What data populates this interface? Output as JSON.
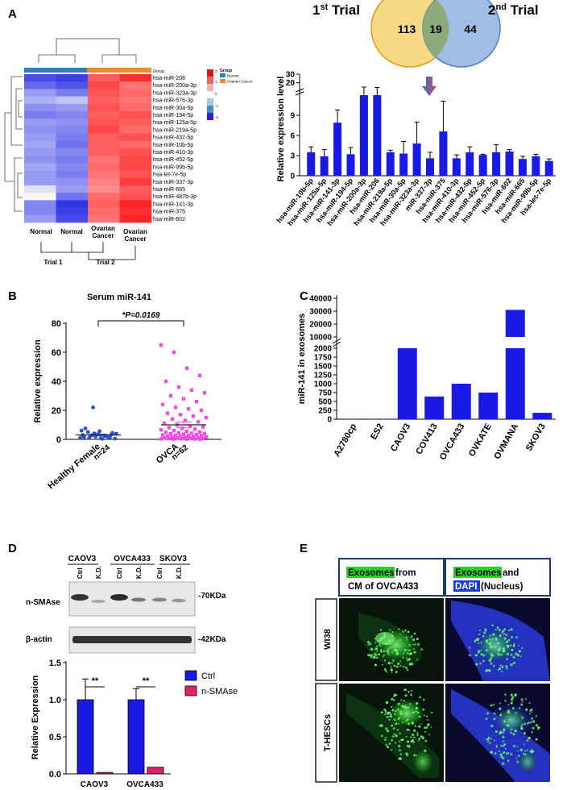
{
  "panels": {
    "A": "A",
    "B": "B",
    "C": "C",
    "D": "D",
    "E": "E"
  },
  "venn": {
    "left_label": "1st Trial",
    "right_label": "2nd Trial",
    "left_only": "113",
    "overlap": "19",
    "right_only": "44"
  },
  "heatmap": {
    "legend_title_colorbar": "Group",
    "legend_title": "Group",
    "legend_items": [
      {
        "label": "Normal",
        "color": "#2e7fc1"
      },
      {
        "label": "Ovarian Cancer",
        "color": "#f28c28"
      }
    ],
    "colorbar_ticks": [
      "2",
      "1",
      "0",
      "-1",
      "-2"
    ],
    "rows": [
      "hsa-miR-206",
      "hsa-miR-200a-3p",
      "hsa-miR-323a-3p",
      "hsa-miR-576-3p",
      "hsa-miR-30a-5p",
      "hsa-miR-194-5p",
      "hsa-miR-125a-5p",
      "hsa-miR-219a-5p",
      "hsa-miR-432-5p",
      "hsa-miR-10b-5p",
      "hsa-miR-410-3p",
      "hsa-miR-452-5p",
      "hsa-miR-99b-5p",
      "hsa-let-7e-5p",
      "hsa-miR-337-3p",
      "hsa-miR-665",
      "hsa-miR-487b-3p",
      "hsa-miR-141-3p",
      "hsa-miR-375",
      "hsa-miR-602"
    ],
    "columns": [
      "Normal",
      "Normal",
      "Ovarian Cancer",
      "Ovarian Cancer"
    ],
    "values": [
      [
        -1.8,
        -1.9,
        1.4,
        1.8
      ],
      [
        -1.5,
        -1.7,
        1.6,
        1.2
      ],
      [
        -1.0,
        -1.3,
        1.5,
        1.3
      ],
      [
        -0.8,
        -0.6,
        1.4,
        1.2
      ],
      [
        -1.1,
        -1.0,
        1.5,
        1.3
      ],
      [
        -1.3,
        -1.2,
        1.4,
        1.5
      ],
      [
        -1.0,
        -1.1,
        1.5,
        1.4
      ],
      [
        -1.1,
        -1.2,
        1.6,
        1.3
      ],
      [
        -1.0,
        -1.3,
        1.4,
        1.5
      ],
      [
        -0.9,
        -1.4,
        1.4,
        1.3
      ],
      [
        -1.0,
        -1.2,
        1.4,
        1.5
      ],
      [
        -1.1,
        -1.3,
        1.2,
        1.6
      ],
      [
        -0.9,
        -1.2,
        1.3,
        1.6
      ],
      [
        -1.0,
        -1.3,
        1.2,
        1.5
      ],
      [
        -1.0,
        -1.1,
        1.1,
        1.7
      ],
      [
        -0.3,
        -1.0,
        1.0,
        1.4
      ],
      [
        0.1,
        -1.4,
        1.3,
        1.5
      ],
      [
        -1.2,
        -2.0,
        1.4,
        1.9
      ],
      [
        -1.2,
        -1.9,
        1.3,
        1.8
      ],
      [
        -1.0,
        -1.8,
        1.2,
        1.9
      ]
    ],
    "trial1": "Trial 1",
    "trial2": "Trial 2",
    "col_labels": [
      "Normal",
      "Normal",
      "Ovarian\nCancer",
      "Ovarian\nCancer"
    ]
  },
  "chart_data": [
    {
      "type": "bar",
      "ylabel": "Relative expression level",
      "yticks": [
        "0",
        "3",
        "6",
        "9",
        "20",
        "30"
      ],
      "categories": [
        "hsa-miR-10b-5p",
        "hsa-miR-125a-5p",
        "hsa-miR-141-3p",
        "hsa-miR-194-5p",
        "hsa-miR-200a-3p",
        "hsa-miR-206",
        "hsa-miR-219a-5p",
        "hsa-miR-30a-5p",
        "hsa-miR-323a-3p",
        "miR-337-3p",
        "hsa-miR-375",
        "hsa-miR-410-3p",
        "hsa-miR-432-5p",
        "hsa-miR-452-5p",
        "hsa-miR-576-3p",
        "hsa-miR-602",
        "hsa-miR-665",
        "hsa-miR-99b-5p",
        "hsa-let-7e-5p"
      ],
      "values": [
        3.5,
        2.9,
        7.9,
        3.2,
        12.0,
        13.0,
        3.5,
        3.3,
        4.8,
        2.6,
        6.6,
        2.6,
        3.5,
        3.1,
        3.5,
        3.6,
        2.5,
        2.9,
        2.2
      ],
      "errors": [
        0.8,
        1.0,
        1.9,
        1.0,
        3.0,
        1.5,
        0.3,
        1.8,
        3.2,
        0.9,
        4.5,
        0.5,
        0.8,
        0.1,
        1.1,
        0.3,
        0.4,
        0.3,
        0.3
      ],
      "ylim": [
        0,
        30
      ],
      "broken_axis": true,
      "highlight_index": 9,
      "color": "#1a1ae6"
    },
    {
      "type": "scatter",
      "title": "Serum miR-141",
      "ylabel": "Relative expression",
      "yticks": [
        "0",
        "20",
        "40",
        "60",
        "80"
      ],
      "ylim": [
        0,
        80
      ],
      "categories": [
        "Healthy Female",
        "OVCA"
      ],
      "n_labels": [
        "n=24",
        "n=62"
      ],
      "annotation": "*P=0.0169",
      "series": [
        {
          "color": "#2b4fd8",
          "mean": 3.0,
          "sem": 0.6,
          "values": [
            1.0,
            2.5,
            0.8,
            3.2,
            1.6,
            4.1,
            2.2,
            0.5,
            5.0,
            3.6,
            1.2,
            6.0,
            2.8,
            0.3,
            4.5,
            7.5,
            1.9,
            2.4,
            3.9,
            0.9,
            5.6,
            1.4,
            3.0,
            22.0
          ]
        },
        {
          "color": "#f24ce8",
          "mean": 10.0,
          "sem": 2.0,
          "values": [
            65.0,
            60.0,
            49.0,
            44.0,
            40.0,
            36.0,
            34.0,
            32.0,
            30.0,
            28.0,
            26.0,
            24.0,
            22.0,
            21.0,
            20.0,
            18.0,
            17.0,
            16.0,
            15.0,
            14.0,
            13.0,
            12.0,
            11.0,
            10.0,
            9.0,
            8.5,
            8.0,
            7.5,
            7.0,
            6.5,
            6.0,
            5.5,
            5.0,
            4.8,
            4.5,
            4.2,
            4.0,
            3.8,
            3.5,
            3.2,
            3.0,
            2.8,
            2.6,
            2.4,
            2.2,
            2.0,
            1.8,
            1.6,
            1.4,
            1.2,
            1.0,
            0.9,
            0.8,
            0.7,
            0.6,
            0.5,
            0.4,
            0.3,
            0.3,
            0.2,
            0.2,
            0.1
          ]
        }
      ]
    },
    {
      "type": "bar",
      "ylabel": "miR-141 in exosomes",
      "yticks": [
        "0",
        "250",
        "500",
        "750",
        "1000",
        "1250",
        "1500",
        "1750",
        "2000",
        "10000",
        "20000",
        "30000",
        "40000"
      ],
      "categories": [
        "A2780cp",
        "ES2",
        "CAOV3",
        "COV413",
        "OVCA433",
        "OVKATE",
        "OVMANA",
        "SKOV3"
      ],
      "values": [
        2,
        5,
        10000,
        640,
        1000,
        750,
        31000,
        180
      ],
      "broken_axis": true,
      "color": "#1a1ae6"
    },
    {
      "type": "bar",
      "ylabel": "Relative Expression",
      "yticks": [
        "0.0",
        "0.5",
        "1.0",
        "1.5"
      ],
      "ylim": [
        0,
        1.5
      ],
      "categories": [
        "CAOV3",
        "OVCA433"
      ],
      "series": [
        {
          "name": "Ctrl",
          "color": "#1a1ae6",
          "values": [
            1.0,
            1.0
          ],
          "errors": [
            0.28,
            0.15
          ]
        },
        {
          "name": "n-SMAse",
          "color": "#e0206a",
          "values": [
            0.02,
            0.09
          ],
          "errors": [
            0.0,
            0.0
          ]
        }
      ],
      "significance": [
        "**",
        "**"
      ],
      "legend_position": "right"
    }
  ],
  "western": {
    "groups": [
      "CAOV3",
      "OVCA433",
      "SKOV3"
    ],
    "lanes": [
      "Ctrl",
      "K.D.",
      "Ctrl",
      "K.D.",
      "Ctrl",
      "K.D."
    ],
    "row1_label": "n-SMAse",
    "row1_size": "-70KDa",
    "row2_label": "β-actin",
    "row2_size": "-42KDa"
  },
  "microscopy": {
    "col1_highlight": "Exosomes",
    "col1_rest_a": " from",
    "col1_line2": "CM of OVCA433",
    "col2_highlight": "Exosomes",
    "col2_rest_a": " and",
    "col2_dapi": "DAPI",
    "col2_nucleus": "(Nucleus)",
    "rows": [
      "WI38",
      "T-HESCs"
    ]
  }
}
